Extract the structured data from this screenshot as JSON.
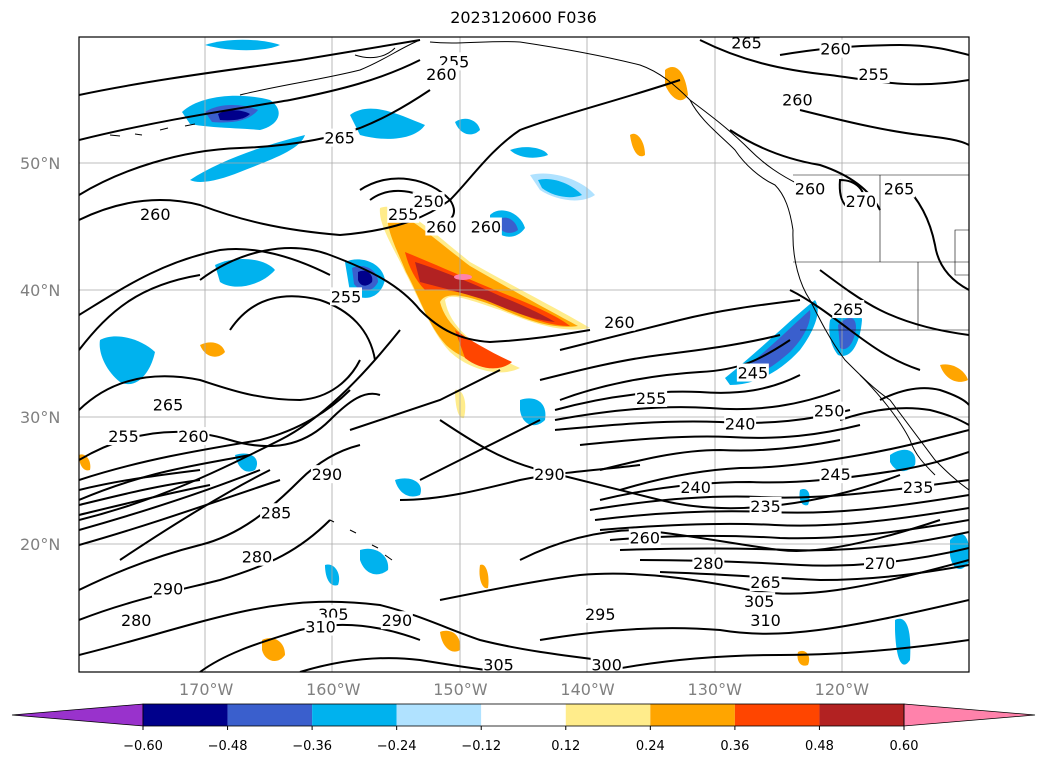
{
  "title": "2023120600 F036",
  "lat_labels": [
    {
      "label": "50°N",
      "lat": 50
    },
    {
      "label": "40°N",
      "lat": 40
    },
    {
      "label": "30°N",
      "lat": 30
    },
    {
      "label": "20°N",
      "lat": 20
    }
  ],
  "lon_labels": [
    {
      "label": "170°W",
      "lon": -170
    },
    {
      "label": "160°W",
      "lon": -160
    },
    {
      "label": "150°W",
      "lon": -150
    },
    {
      "label": "140°W",
      "lon": -140
    },
    {
      "label": "130°W",
      "lon": -130
    },
    {
      "label": "120°W",
      "lon": -120
    }
  ],
  "colorbar": {
    "ticks": [
      "−0.60",
      "−0.48",
      "−0.36",
      "−0.24",
      "−0.12",
      "0.12",
      "0.24",
      "0.36",
      "0.48",
      "0.60"
    ],
    "colors": [
      "#9932cc",
      "#00008b",
      "#3a5fcd",
      "#00b2ee",
      "#b0e2ff",
      "#ffffff",
      "#ffec8b",
      "#ffa500",
      "#ff4500",
      "#b22222",
      "#ff82ab"
    ]
  },
  "contour_labels": [
    {
      "text": "265",
      "lon": -127.5,
      "lat": 59.5
    },
    {
      "text": "260",
      "lon": -120.5,
      "lat": 59
    },
    {
      "text": "255",
      "lon": -117.5,
      "lat": 57
    },
    {
      "text": "255",
      "lon": -150.5,
      "lat": 58
    },
    {
      "text": "260",
      "lon": -151.5,
      "lat": 57
    },
    {
      "text": "260",
      "lon": -123.5,
      "lat": 55
    },
    {
      "text": "265",
      "lon": -159.5,
      "lat": 52
    },
    {
      "text": "260",
      "lon": -122.5,
      "lat": 48
    },
    {
      "text": "270",
      "lon": -118.5,
      "lat": 47
    },
    {
      "text": "265",
      "lon": -115.5,
      "lat": 48
    },
    {
      "text": "260",
      "lon": -174,
      "lat": 46
    },
    {
      "text": "255",
      "lon": -154.5,
      "lat": 46
    },
    {
      "text": "250",
      "lon": -152.5,
      "lat": 47
    },
    {
      "text": "260",
      "lon": -151.5,
      "lat": 45
    },
    {
      "text": "260",
      "lon": -148,
      "lat": 45
    },
    {
      "text": "255",
      "lon": -159,
      "lat": 39.5
    },
    {
      "text": "260",
      "lon": -137.5,
      "lat": 37.5
    },
    {
      "text": "265",
      "lon": -119.5,
      "lat": 38.5
    },
    {
      "text": "245",
      "lon": -127,
      "lat": 33.5
    },
    {
      "text": "255",
      "lon": -135,
      "lat": 31.5
    },
    {
      "text": "240",
      "lon": -128,
      "lat": 29.5
    },
    {
      "text": "250",
      "lon": -121,
      "lat": 30.5
    },
    {
      "text": "265",
      "lon": -173,
      "lat": 31
    },
    {
      "text": "260",
      "lon": -171,
      "lat": 28.5
    },
    {
      "text": "255",
      "lon": -176.5,
      "lat": 28.5
    },
    {
      "text": "290",
      "lon": -160.5,
      "lat": 25.5
    },
    {
      "text": "290",
      "lon": -143,
      "lat": 25.5
    },
    {
      "text": "245",
      "lon": -120.5,
      "lat": 25.5
    },
    {
      "text": "240",
      "lon": -131.5,
      "lat": 24.5
    },
    {
      "text": "235",
      "lon": -114,
      "lat": 24.5
    },
    {
      "text": "235",
      "lon": -126,
      "lat": 23
    },
    {
      "text": "285",
      "lon": -164.5,
      "lat": 22.5
    },
    {
      "text": "260",
      "lon": -135.5,
      "lat": 20.5
    },
    {
      "text": "280",
      "lon": -130.5,
      "lat": 18.5
    },
    {
      "text": "270",
      "lon": -117,
      "lat": 18.5
    },
    {
      "text": "265",
      "lon": -126,
      "lat": 17
    },
    {
      "text": "280",
      "lon": -166,
      "lat": 19
    },
    {
      "text": "290",
      "lon": -173,
      "lat": 16.5
    },
    {
      "text": "305",
      "lon": -126.5,
      "lat": 15.5
    },
    {
      "text": "310",
      "lon": -126,
      "lat": 14
    },
    {
      "text": "305",
      "lon": -160,
      "lat": 14.5
    },
    {
      "text": "310",
      "lon": -161,
      "lat": 13.5
    },
    {
      "text": "290",
      "lon": -155,
      "lat": 14
    },
    {
      "text": "295",
      "lon": -139,
      "lat": 14.5
    },
    {
      "text": "280",
      "lon": -175.5,
      "lat": 14
    },
    {
      "text": "305",
      "lon": -147,
      "lat": 10.5
    },
    {
      "text": "300",
      "lon": -138.5,
      "lat": 10.5
    }
  ]
}
